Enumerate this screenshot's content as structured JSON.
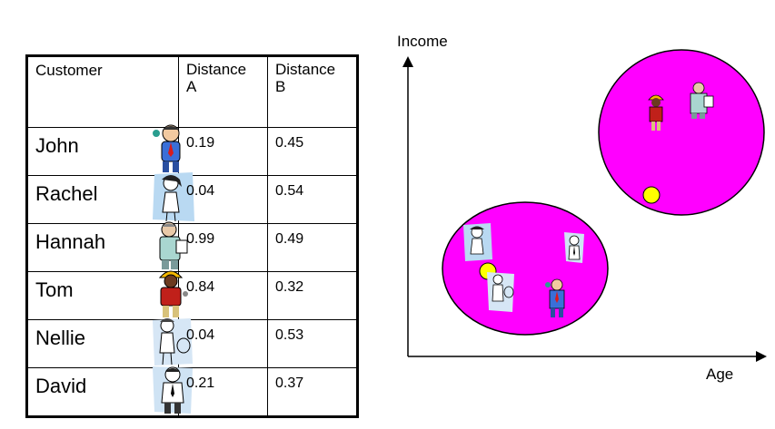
{
  "table": {
    "headers": [
      "Customer",
      "Distance A",
      "Distance B"
    ],
    "rows": [
      {
        "name": "John",
        "dist_a": "0.19",
        "dist_b": "0.45",
        "icon": "businessman-icon"
      },
      {
        "name": "Rachel",
        "dist_a": "0.04",
        "dist_b": "0.54",
        "icon": "woman-icon"
      },
      {
        "name": "Hannah",
        "dist_a": "0.99",
        "dist_b": "0.49",
        "icon": "man-with-clipboard-icon"
      },
      {
        "name": "Tom",
        "dist_a": "0.84",
        "dist_b": "0.32",
        "icon": "construction-worker-icon"
      },
      {
        "name": "Nellie",
        "dist_a": "0.04",
        "dist_b": "0.53",
        "icon": "woman-tennis-icon"
      },
      {
        "name": "David",
        "dist_a": "0.21",
        "dist_b": "0.37",
        "icon": "man-in-suit-icon"
      }
    ]
  },
  "diagram": {
    "y_axis_label": "Income",
    "x_axis_label": "Age",
    "cluster_color": "#ff00ff",
    "centroid_color": "#ffff00"
  }
}
